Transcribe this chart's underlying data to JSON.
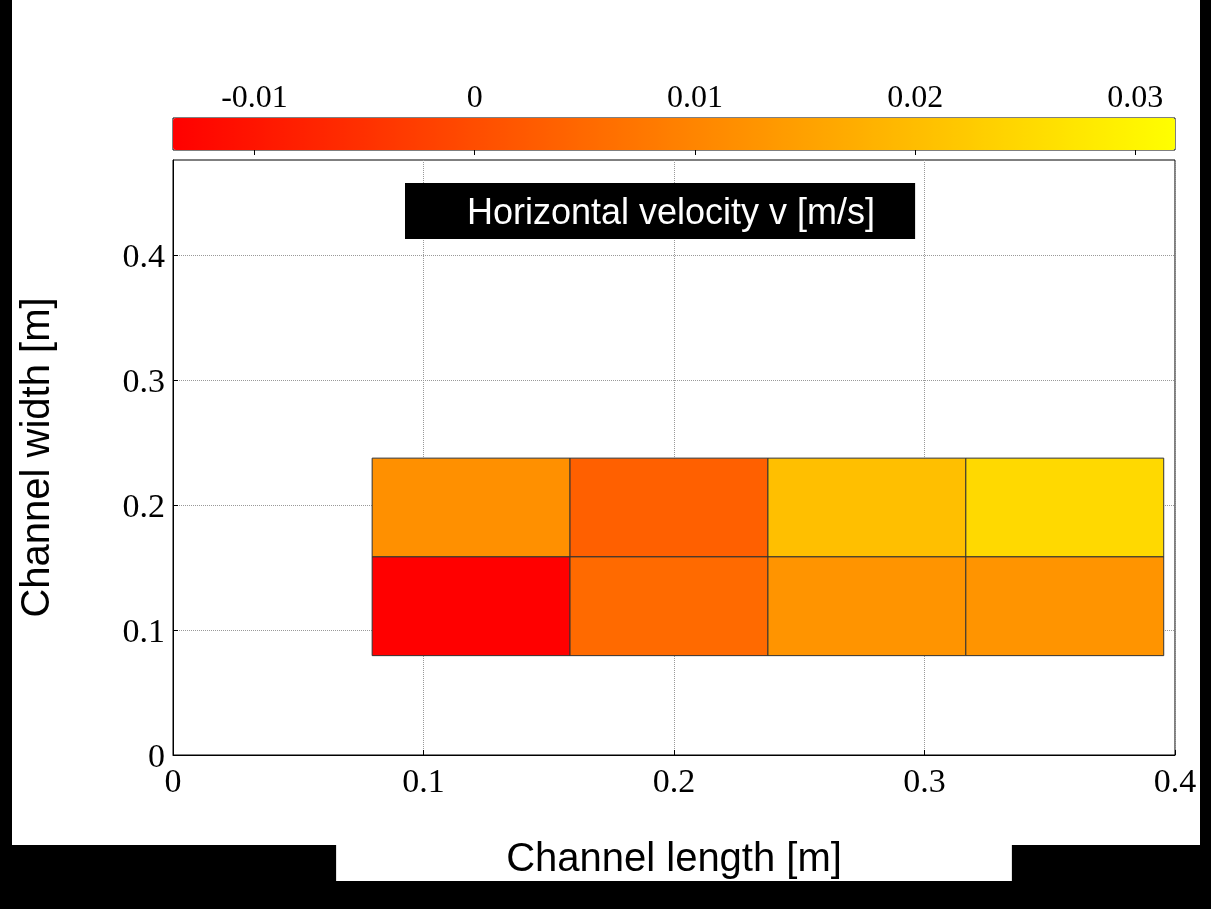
{
  "chart_data": {
    "type": "heatmap",
    "title": "Horizontal velocity v [m/s]",
    "xlabel": "Channel length [m]",
    "ylabel": "Channel width [m]",
    "x": [
      0.119,
      0.198,
      0.277,
      0.356
    ],
    "y": [
      0.198,
      0.119
    ],
    "cells": [
      [
        0.012,
        0.0034,
        0.0204,
        0.025
      ],
      [
        -0.0137,
        0.0052,
        0.0127,
        0.0127
      ]
    ],
    "clim": [
      -0.0137,
      0.0318
    ],
    "cticks": [
      -0.01,
      0,
      0.01,
      0.02,
      0.03
    ],
    "xlim": [
      0,
      0.4
    ],
    "xticks": [
      0,
      0.1,
      0.2,
      0.3,
      0.4
    ],
    "ylim": [
      0,
      0.476
    ],
    "yticks": [
      0,
      0.1,
      0.2,
      0.3,
      0.4
    ],
    "grid": true
  }
}
